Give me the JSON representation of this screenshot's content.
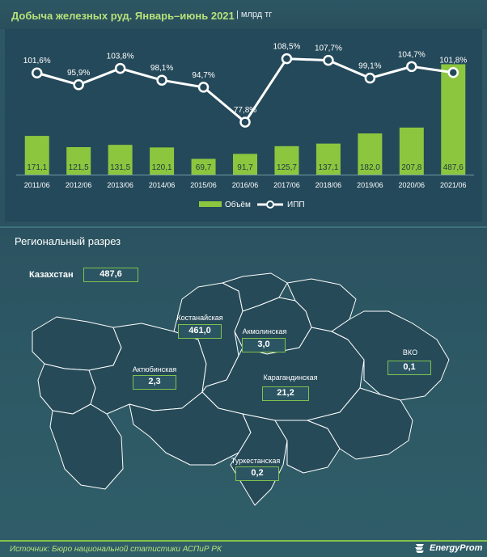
{
  "header": {
    "title": "Добыча железных руд. Январь–июнь 2021",
    "unit": "| млрд тг"
  },
  "chart_data": {
    "type": "bar",
    "title": "Добыча железных руд. Январь–июнь 2021",
    "unit": "млрд тг",
    "categories": [
      "2011/06",
      "2012/06",
      "2013/06",
      "2014/06",
      "2015/06",
      "2016/06",
      "2017/06",
      "2018/06",
      "2019/06",
      "2020/06",
      "2021/06"
    ],
    "series": [
      {
        "name": "Объём",
        "type": "bar",
        "values": [
          171.1,
          121.5,
          131.5,
          120.1,
          69.7,
          91.7,
          125.7,
          137.1,
          182.0,
          207.8,
          487.6
        ],
        "labels": [
          "171,1",
          "121,5",
          "131,5",
          "120,1",
          "69,7",
          "91,7",
          "125,7",
          "137,1",
          "182,0",
          "207,8",
          "487,6"
        ]
      },
      {
        "name": "ИПП",
        "type": "line",
        "values": [
          101.6,
          95.9,
          103.8,
          98.1,
          94.7,
          77.8,
          108.5,
          107.7,
          99.1,
          104.7,
          101.8
        ],
        "labels": [
          "101,6%",
          "95,9%",
          "103,8%",
          "98,1%",
          "94,7%",
          "77,8%",
          "108,5%",
          "107,7%",
          "99,1%",
          "104,7%",
          "101,8%"
        ]
      }
    ],
    "legend": {
      "position": "bottom",
      "items": [
        "Объём",
        "ИПП"
      ]
    },
    "colors": {
      "bar": "#8cc63f",
      "line": "#ffffff"
    }
  },
  "regional": {
    "section_title": "Региональный разрез",
    "country_label": "Казахстан",
    "country_value": "487,6",
    "regions": [
      {
        "name": "Костанайская",
        "value": "461,0"
      },
      {
        "name": "Акмолинская",
        "value": "3,0"
      },
      {
        "name": "Актюбинская",
        "value": "2,3"
      },
      {
        "name": "Карагандинская",
        "value": "21,2"
      },
      {
        "name": "ВКО",
        "value": "0,1"
      },
      {
        "name": "Туркестанская",
        "value": "0,2"
      }
    ]
  },
  "footer": {
    "source": "Источник: Бюро национальной статистики АСПиР РК",
    "logo": "EnergyProm"
  }
}
